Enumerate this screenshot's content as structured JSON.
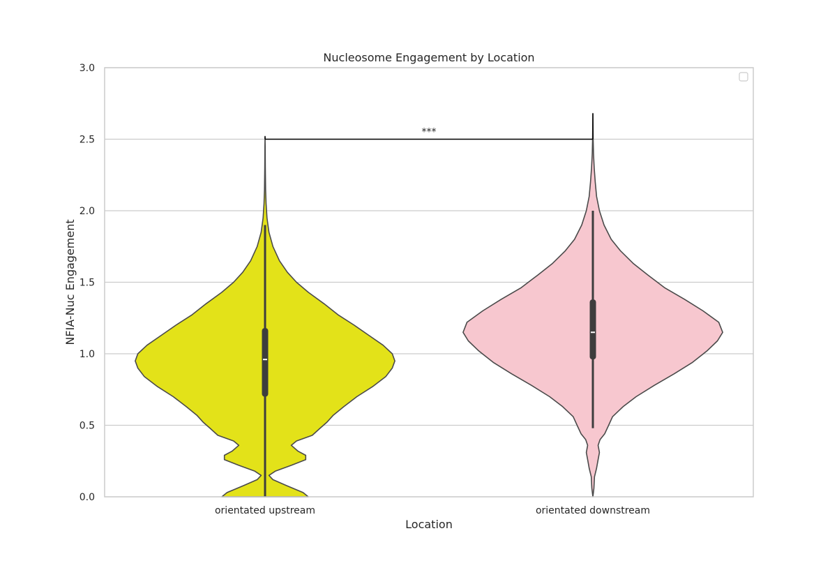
{
  "chart_data": {
    "type": "violin",
    "title": "Nucleosome Engagement by Location",
    "xlabel": "Location",
    "ylabel": "NFIA-Nuc Engagement",
    "ylim": [
      0.0,
      3.0
    ],
    "yticks": [
      "0.0",
      "0.5",
      "1.0",
      "1.5",
      "2.0",
      "2.5",
      "3.0"
    ],
    "grid": "horizontal",
    "legend": "top-right (empty)",
    "categories": [
      "orientated upstream",
      "orientated downstream"
    ],
    "violins": [
      {
        "category": "orientated upstream",
        "color": "#e3e219",
        "box": {
          "whisker_low": 0.0,
          "q1": 0.7,
          "median": 0.96,
          "q3": 1.18,
          "whisker_high": 1.9
        },
        "profile": [
          [
            0.0,
            0.33
          ],
          [
            0.03,
            0.29
          ],
          [
            0.08,
            0.16
          ],
          [
            0.12,
            0.06
          ],
          [
            0.15,
            0.03
          ],
          [
            0.18,
            0.08
          ],
          [
            0.22,
            0.2
          ],
          [
            0.26,
            0.31
          ],
          [
            0.29,
            0.31
          ],
          [
            0.32,
            0.25
          ],
          [
            0.36,
            0.2
          ],
          [
            0.39,
            0.24
          ],
          [
            0.43,
            0.36
          ],
          [
            0.48,
            0.42
          ],
          [
            0.52,
            0.47
          ],
          [
            0.57,
            0.52
          ],
          [
            0.63,
            0.6
          ],
          [
            0.7,
            0.7
          ],
          [
            0.77,
            0.82
          ],
          [
            0.84,
            0.92
          ],
          [
            0.9,
            0.97
          ],
          [
            0.95,
            0.99
          ],
          [
            1.0,
            0.97
          ],
          [
            1.06,
            0.9
          ],
          [
            1.13,
            0.79
          ],
          [
            1.2,
            0.68
          ],
          [
            1.27,
            0.56
          ],
          [
            1.35,
            0.45
          ],
          [
            1.43,
            0.33
          ],
          [
            1.5,
            0.24
          ],
          [
            1.57,
            0.17
          ],
          [
            1.65,
            0.11
          ],
          [
            1.75,
            0.06
          ],
          [
            1.85,
            0.03
          ],
          [
            1.95,
            0.015
          ],
          [
            2.05,
            0.008
          ],
          [
            2.15,
            0.004
          ],
          [
            2.3,
            0.002
          ],
          [
            2.45,
            0.001
          ],
          [
            2.52,
            0.0
          ]
        ]
      },
      {
        "category": "orientated downstream",
        "color": "#f7c7cf",
        "box": {
          "whisker_low": 0.48,
          "q1": 0.96,
          "median": 1.15,
          "q3": 1.38,
          "whisker_high": 2.0
        },
        "profile": [
          [
            0.0,
            0.0
          ],
          [
            0.06,
            0.008
          ],
          [
            0.14,
            0.012
          ],
          [
            0.2,
            0.028
          ],
          [
            0.26,
            0.04
          ],
          [
            0.31,
            0.05
          ],
          [
            0.36,
            0.04
          ],
          [
            0.4,
            0.055
          ],
          [
            0.44,
            0.09
          ],
          [
            0.5,
            0.12
          ],
          [
            0.56,
            0.15
          ],
          [
            0.63,
            0.23
          ],
          [
            0.7,
            0.33
          ],
          [
            0.78,
            0.47
          ],
          [
            0.86,
            0.62
          ],
          [
            0.94,
            0.76
          ],
          [
            1.02,
            0.87
          ],
          [
            1.09,
            0.95
          ],
          [
            1.15,
            0.99
          ],
          [
            1.22,
            0.96
          ],
          [
            1.3,
            0.84
          ],
          [
            1.38,
            0.7
          ],
          [
            1.46,
            0.55
          ],
          [
            1.55,
            0.42
          ],
          [
            1.63,
            0.31
          ],
          [
            1.72,
            0.21
          ],
          [
            1.8,
            0.14
          ],
          [
            1.9,
            0.085
          ],
          [
            2.0,
            0.05
          ],
          [
            2.1,
            0.028
          ],
          [
            2.2,
            0.018
          ],
          [
            2.3,
            0.01
          ],
          [
            2.4,
            0.005
          ],
          [
            2.5,
            0.002
          ],
          [
            2.6,
            0.001
          ],
          [
            2.68,
            0.0
          ]
        ]
      }
    ],
    "annotation": {
      "text": "***",
      "between": [
        "orientated upstream",
        "orientated downstream"
      ],
      "y": 2.5
    }
  }
}
